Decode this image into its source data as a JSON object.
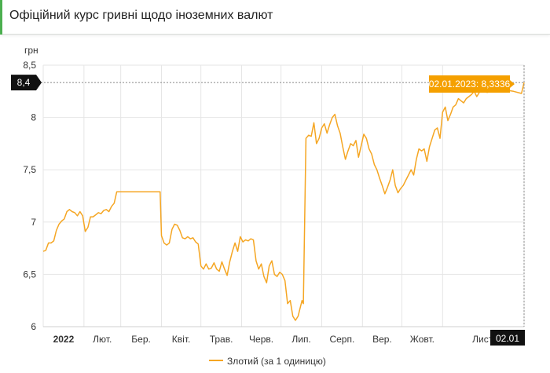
{
  "header": {
    "title": "Офіційний курс гривні щодо іноземних валют"
  },
  "colors": {
    "line": "#f5a623",
    "tooltip": "#f5a000",
    "accent": "#4caf50",
    "grid": "#e6e6e6",
    "axis_flag": "#111111"
  },
  "chart_data": {
    "type": "line",
    "ylabel": "грн",
    "ylim": [
      6,
      8.5
    ],
    "y_ticks": [
      "8,5",
      "8",
      "7,5",
      "7",
      "6,5",
      "6"
    ],
    "y_tick_values": [
      8.5,
      8,
      7.5,
      7,
      6.5,
      6
    ],
    "x_tick_labels": [
      "2022",
      "Лют.",
      "Бер.",
      "Квіт.",
      "Трав.",
      "Черв.",
      "Лип.",
      "Серп.",
      "Вер.",
      "Жовт.",
      "Лист."
    ],
    "x_tick_dates": [
      "2022-01-01",
      "2022-02-01",
      "2022-03-01",
      "2022-04-01",
      "2022-05-01",
      "2022-06-01",
      "2022-07-01",
      "2022-08-01",
      "2022-09-01",
      "2022-10-01",
      "2022-11-01"
    ],
    "x_range": [
      "2022-01-01",
      "2023-01-02"
    ],
    "crosshair_y_label": "8,4",
    "crosshair_x_label": "02.01",
    "tooltip": "02.01.2023: 8,3336",
    "legend": "Злотий (за 1 одиницю)",
    "grid": true,
    "series": [
      {
        "name": "Злотий (за 1 одиницю)",
        "points": [
          [
            "2022-01-01",
            6.72
          ],
          [
            "2022-01-03",
            6.73
          ],
          [
            "2022-01-05",
            6.8
          ],
          [
            "2022-01-07",
            6.8
          ],
          [
            "2022-01-09",
            6.82
          ],
          [
            "2022-01-11",
            6.92
          ],
          [
            "2022-01-13",
            6.98
          ],
          [
            "2022-01-15",
            7.01
          ],
          [
            "2022-01-17",
            7.03
          ],
          [
            "2022-01-19",
            7.1
          ],
          [
            "2022-01-21",
            7.12
          ],
          [
            "2022-01-23",
            7.1
          ],
          [
            "2022-01-25",
            7.09
          ],
          [
            "2022-01-27",
            7.06
          ],
          [
            "2022-01-29",
            7.1
          ],
          [
            "2022-01-31",
            7.06
          ],
          [
            "2022-02-02",
            6.91
          ],
          [
            "2022-02-04",
            6.95
          ],
          [
            "2022-02-06",
            7.05
          ],
          [
            "2022-02-08",
            7.05
          ],
          [
            "2022-02-10",
            7.07
          ],
          [
            "2022-02-12",
            7.09
          ],
          [
            "2022-02-14",
            7.08
          ],
          [
            "2022-02-16",
            7.11
          ],
          [
            "2022-02-18",
            7.12
          ],
          [
            "2022-02-20",
            7.1
          ],
          [
            "2022-02-22",
            7.15
          ],
          [
            "2022-02-24",
            7.18
          ],
          [
            "2022-02-26",
            7.29
          ],
          [
            "2022-03-05",
            7.29
          ],
          [
            "2022-03-12",
            7.29
          ],
          [
            "2022-03-19",
            7.29
          ],
          [
            "2022-03-26",
            7.29
          ],
          [
            "2022-03-31",
            7.29
          ],
          [
            "2022-04-01",
            6.87
          ],
          [
            "2022-04-03",
            6.8
          ],
          [
            "2022-04-05",
            6.78
          ],
          [
            "2022-04-07",
            6.8
          ],
          [
            "2022-04-09",
            6.93
          ],
          [
            "2022-04-11",
            6.98
          ],
          [
            "2022-04-13",
            6.97
          ],
          [
            "2022-04-15",
            6.92
          ],
          [
            "2022-04-17",
            6.85
          ],
          [
            "2022-04-19",
            6.84
          ],
          [
            "2022-04-21",
            6.86
          ],
          [
            "2022-04-23",
            6.84
          ],
          [
            "2022-04-25",
            6.85
          ],
          [
            "2022-04-27",
            6.81
          ],
          [
            "2022-04-29",
            6.79
          ],
          [
            "2022-05-01",
            6.58
          ],
          [
            "2022-05-03",
            6.55
          ],
          [
            "2022-05-05",
            6.6
          ],
          [
            "2022-05-07",
            6.55
          ],
          [
            "2022-05-09",
            6.56
          ],
          [
            "2022-05-11",
            6.61
          ],
          [
            "2022-05-13",
            6.55
          ],
          [
            "2022-05-15",
            6.53
          ],
          [
            "2022-05-17",
            6.62
          ],
          [
            "2022-05-19",
            6.55
          ],
          [
            "2022-05-21",
            6.49
          ],
          [
            "2022-05-23",
            6.62
          ],
          [
            "2022-05-25",
            6.72
          ],
          [
            "2022-05-27",
            6.8
          ],
          [
            "2022-05-29",
            6.72
          ],
          [
            "2022-05-31",
            6.86
          ],
          [
            "2022-06-02",
            6.81
          ],
          [
            "2022-06-04",
            6.83
          ],
          [
            "2022-06-06",
            6.82
          ],
          [
            "2022-06-08",
            6.84
          ],
          [
            "2022-06-10",
            6.83
          ],
          [
            "2022-06-12",
            6.63
          ],
          [
            "2022-06-14",
            6.55
          ],
          [
            "2022-06-16",
            6.6
          ],
          [
            "2022-06-18",
            6.48
          ],
          [
            "2022-06-20",
            6.42
          ],
          [
            "2022-06-22",
            6.58
          ],
          [
            "2022-06-24",
            6.63
          ],
          [
            "2022-06-26",
            6.5
          ],
          [
            "2022-06-28",
            6.48
          ],
          [
            "2022-06-30",
            6.52
          ],
          [
            "2022-07-02",
            6.5
          ],
          [
            "2022-07-04",
            6.44
          ],
          [
            "2022-07-06",
            6.22
          ],
          [
            "2022-07-08",
            6.25
          ],
          [
            "2022-07-10",
            6.1
          ],
          [
            "2022-07-12",
            6.06
          ],
          [
            "2022-07-14",
            6.1
          ],
          [
            "2022-07-16",
            6.2
          ],
          [
            "2022-07-17",
            6.25
          ],
          [
            "2022-07-18",
            6.22
          ],
          [
            "2022-07-20",
            7.8
          ],
          [
            "2022-07-22",
            7.83
          ],
          [
            "2022-07-24",
            7.82
          ],
          [
            "2022-07-26",
            7.95
          ],
          [
            "2022-07-28",
            7.75
          ],
          [
            "2022-07-30",
            7.8
          ],
          [
            "2022-08-01",
            7.9
          ],
          [
            "2022-08-03",
            7.94
          ],
          [
            "2022-08-05",
            7.85
          ],
          [
            "2022-08-07",
            7.93
          ],
          [
            "2022-08-09",
            8.0
          ],
          [
            "2022-08-11",
            8.03
          ],
          [
            "2022-08-13",
            7.92
          ],
          [
            "2022-08-15",
            7.85
          ],
          [
            "2022-08-17",
            7.72
          ],
          [
            "2022-08-19",
            7.6
          ],
          [
            "2022-08-21",
            7.68
          ],
          [
            "2022-08-23",
            7.75
          ],
          [
            "2022-08-25",
            7.73
          ],
          [
            "2022-08-27",
            7.78
          ],
          [
            "2022-08-29",
            7.62
          ],
          [
            "2022-08-31",
            7.73
          ],
          [
            "2022-09-02",
            7.84
          ],
          [
            "2022-09-04",
            7.8
          ],
          [
            "2022-09-06",
            7.7
          ],
          [
            "2022-09-08",
            7.65
          ],
          [
            "2022-09-10",
            7.55
          ],
          [
            "2022-09-12",
            7.5
          ],
          [
            "2022-09-14",
            7.42
          ],
          [
            "2022-09-16",
            7.35
          ],
          [
            "2022-09-18",
            7.27
          ],
          [
            "2022-09-20",
            7.33
          ],
          [
            "2022-09-22",
            7.4
          ],
          [
            "2022-09-24",
            7.5
          ],
          [
            "2022-09-26",
            7.35
          ],
          [
            "2022-09-28",
            7.28
          ],
          [
            "2022-09-30",
            7.32
          ],
          [
            "2022-10-02",
            7.35
          ],
          [
            "2022-10-04",
            7.4
          ],
          [
            "2022-10-06",
            7.45
          ],
          [
            "2022-10-08",
            7.5
          ],
          [
            "2022-10-10",
            7.45
          ],
          [
            "2022-10-12",
            7.6
          ],
          [
            "2022-10-14",
            7.7
          ],
          [
            "2022-10-16",
            7.68
          ],
          [
            "2022-10-18",
            7.7
          ],
          [
            "2022-10-20",
            7.58
          ],
          [
            "2022-10-22",
            7.72
          ],
          [
            "2022-10-24",
            7.8
          ],
          [
            "2022-10-26",
            7.88
          ],
          [
            "2022-10-28",
            7.9
          ],
          [
            "2022-10-30",
            7.8
          ],
          [
            "2022-11-01",
            8.05
          ],
          [
            "2022-11-03",
            8.1
          ],
          [
            "2022-11-05",
            7.97
          ],
          [
            "2022-11-07",
            8.03
          ],
          [
            "2022-11-09",
            8.1
          ],
          [
            "2022-11-11",
            8.12
          ],
          [
            "2022-11-13",
            8.18
          ],
          [
            "2022-11-15",
            8.16
          ],
          [
            "2022-11-17",
            8.14
          ],
          [
            "2022-11-19",
            8.18
          ],
          [
            "2022-11-21",
            8.2
          ],
          [
            "2022-11-23",
            8.22
          ],
          [
            "2022-11-25",
            8.25
          ],
          [
            "2022-11-27",
            8.2
          ],
          [
            "2022-11-29",
            8.24
          ],
          [
            "2022-12-01",
            8.25
          ],
          [
            "2022-12-05",
            8.24
          ],
          [
            "2022-12-10",
            8.26
          ],
          [
            "2022-12-15",
            8.25
          ],
          [
            "2022-12-20",
            8.26
          ],
          [
            "2022-12-25",
            8.25
          ],
          [
            "2022-12-31",
            8.23
          ],
          [
            "2023-01-02",
            8.3336
          ]
        ]
      }
    ]
  }
}
